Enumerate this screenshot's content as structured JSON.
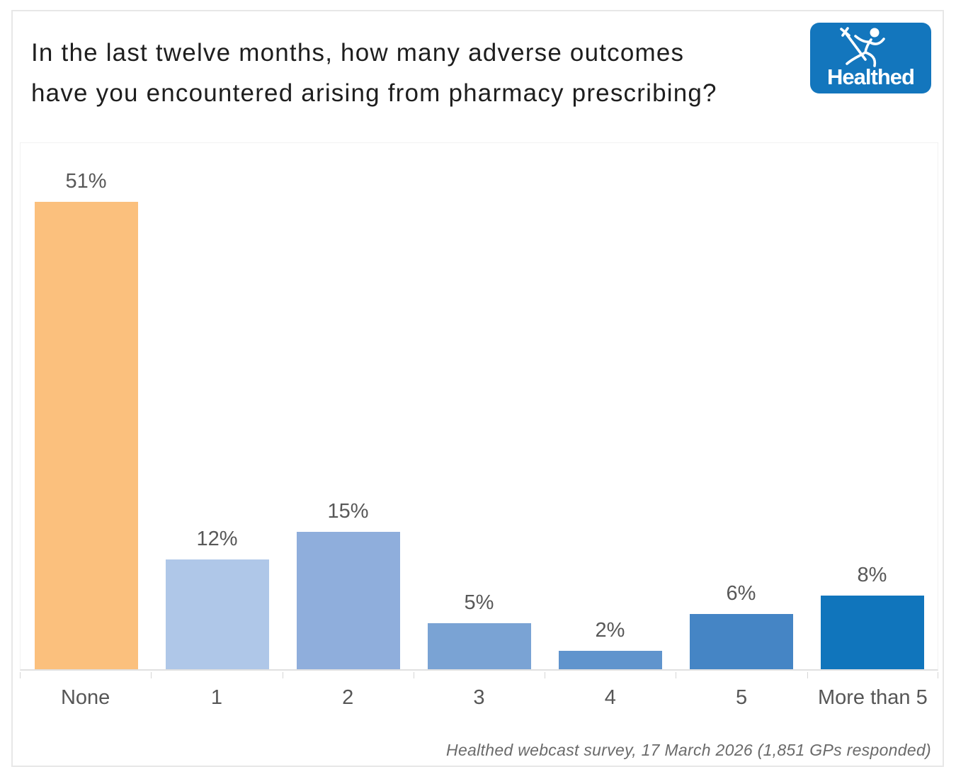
{
  "card": {
    "title_lines": [
      "In the last twelve months, how many adverse outcomes",
      "have you encountered arising from pharmacy prescribing?"
    ],
    "footer": "Healthed webcast survey, 17 March 2026 (1,851 GPs responded)"
  },
  "logo": {
    "text": "Healthed",
    "bg_color": "#1376BD",
    "icon": "hermes-runner-icon"
  },
  "chart_data": {
    "type": "bar",
    "title": "In the last twelve months, how many adverse outcomes have you encountered arising from pharmacy prescribing?",
    "categories": [
      "None",
      "1",
      "2",
      "3",
      "4",
      "5",
      "More than 5"
    ],
    "values": [
      51,
      12,
      15,
      5,
      2,
      6,
      8
    ],
    "labels": [
      "51%",
      "12%",
      "15%",
      "5%",
      "2%",
      "6%",
      "8%"
    ],
    "bar_colors": [
      "#FBC07D",
      "#AFC7E8",
      "#8FAEDC",
      "#7AA3D4",
      "#6094CD",
      "#4585C5",
      "#1075BC"
    ],
    "unit": "%",
    "xlabel": "",
    "ylabel": "",
    "ylim": [
      0,
      55
    ],
    "grid": false,
    "legend": false,
    "value_label_color": "#585858",
    "axis_label_color": "#565656",
    "source_note": "Healthed webcast survey, 17 March 2026 (1,851 GPs responded)"
  }
}
